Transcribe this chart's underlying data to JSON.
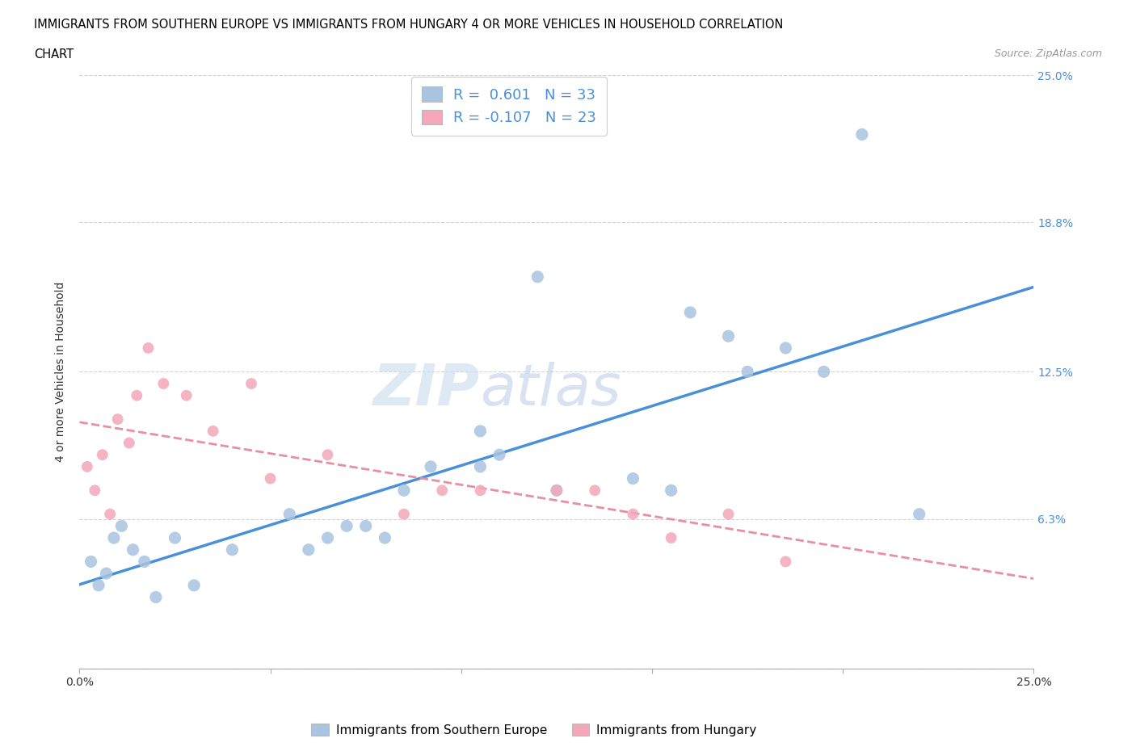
{
  "title_line1": "IMMIGRANTS FROM SOUTHERN EUROPE VS IMMIGRANTS FROM HUNGARY 4 OR MORE VEHICLES IN HOUSEHOLD CORRELATION",
  "title_line2": "CHART",
  "source": "Source: ZipAtlas.com",
  "ylabel": "4 or more Vehicles in Household",
  "xmin": 0.0,
  "xmax": 25.0,
  "ymin": 0.0,
  "ymax": 25.0,
  "yticks": [
    0.0,
    6.3,
    12.5,
    18.8,
    25.0
  ],
  "xticks": [
    0.0,
    5.0,
    10.0,
    15.0,
    20.0,
    25.0
  ],
  "blue_R": "0.601",
  "blue_N": "33",
  "pink_R": "-0.107",
  "pink_N": "23",
  "blue_color": "#a8c4e0",
  "pink_color": "#f4a7b9",
  "blue_line_color": "#4a90d9",
  "pink_line_color": "#e88fa0",
  "legend_label_blue": "Immigrants from Southern Europe",
  "legend_label_pink": "Immigrants from Hungary",
  "blue_dots_x": [
    0.3,
    0.5,
    0.7,
    0.9,
    1.1,
    1.4,
    1.7,
    2.0,
    2.5,
    3.0,
    4.0,
    5.5,
    6.0,
    6.5,
    7.0,
    7.5,
    8.0,
    8.5,
    9.2,
    10.5,
    11.0,
    12.0,
    14.5,
    17.0,
    18.5,
    19.5,
    20.5,
    10.5,
    12.5,
    15.5,
    16.0,
    17.5,
    22.0
  ],
  "blue_dots_y": [
    4.5,
    3.5,
    4.0,
    5.5,
    6.0,
    5.0,
    4.5,
    3.0,
    5.5,
    3.5,
    5.0,
    6.5,
    5.0,
    5.5,
    6.0,
    6.0,
    5.5,
    7.5,
    8.5,
    8.5,
    9.0,
    16.5,
    8.0,
    14.0,
    13.5,
    12.5,
    22.5,
    10.0,
    7.5,
    7.5,
    15.0,
    12.5,
    6.5
  ],
  "pink_dots_x": [
    0.2,
    0.4,
    0.6,
    0.8,
    1.0,
    1.3,
    1.5,
    1.8,
    2.2,
    2.8,
    3.5,
    4.5,
    5.0,
    6.5,
    8.5,
    9.5,
    10.5,
    12.5,
    13.5,
    14.5,
    15.5,
    17.0,
    18.5
  ],
  "pink_dots_y": [
    8.5,
    7.5,
    9.0,
    6.5,
    10.5,
    9.5,
    11.5,
    13.5,
    12.0,
    11.5,
    10.0,
    12.0,
    8.0,
    9.0,
    6.5,
    7.5,
    7.5,
    7.5,
    7.5,
    6.5,
    5.5,
    6.5,
    4.5
  ],
  "watermark_zip": "ZIP",
  "watermark_atlas": "atlas",
  "background_color": "#ffffff",
  "grid_color": "#c8c8c8"
}
